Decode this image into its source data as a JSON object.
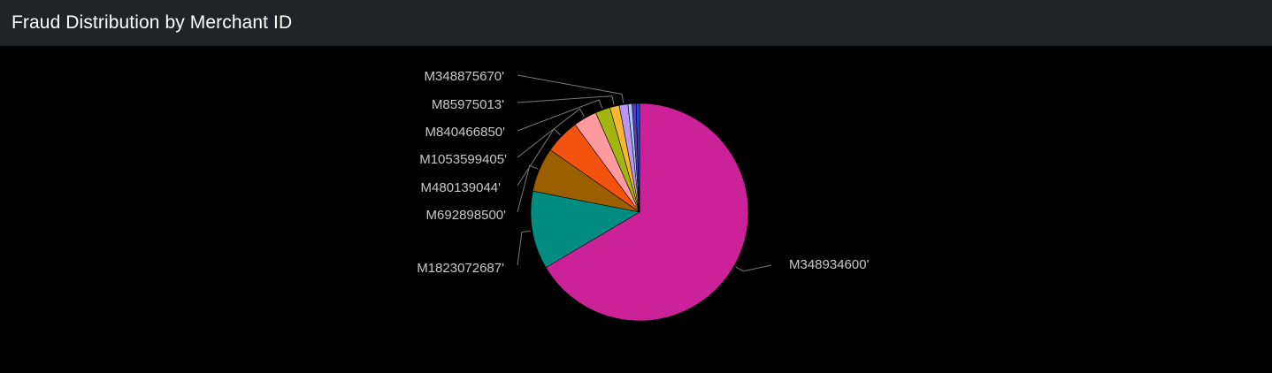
{
  "panel": {
    "title": "Fraud Distribution by Merchant ID"
  },
  "chart_data": {
    "type": "pie",
    "title": "Fraud Distribution by Merchant ID",
    "slices": [
      {
        "label": "M348934600'",
        "value": 66.5,
        "color": "#cc2299"
      },
      {
        "label": "M1823072687'",
        "value": 11.6,
        "color": "#008c80"
      },
      {
        "label": "M692898500'",
        "value": 6.6,
        "color": "#9c5f00"
      },
      {
        "label": "M480139044'",
        "value": 5.2,
        "color": "#f4520f"
      },
      {
        "label": "M1053599405'",
        "value": 3.5,
        "color": "#ff9a9e"
      },
      {
        "label": "M840466850'",
        "value": 2.2,
        "color": "#a3b50f"
      },
      {
        "label": "M85975013'",
        "value": 1.4,
        "color": "#f7b531"
      },
      {
        "label": "M348875670'",
        "value": 1.3,
        "color": "#b894f5"
      },
      {
        "label": "",
        "value": 0.6,
        "color": "#a7c8ff"
      },
      {
        "label": "",
        "value": 0.6,
        "color": "#5b3ab3"
      },
      {
        "label": "",
        "value": 0.5,
        "color": "#1e4fd8"
      }
    ]
  }
}
